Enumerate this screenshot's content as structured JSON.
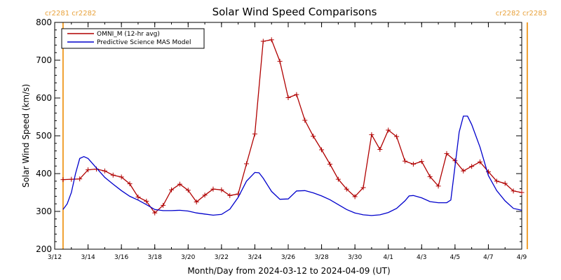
{
  "chart_data": {
    "type": "line",
    "title": "Solar Wind Speed Comparisons",
    "xlabel": "Month/Day from 2024-03-12 to 2024-04-09 (UT)",
    "ylabel": "Solar Wind Speed (km/s)",
    "xlim": [
      "2024-03-12",
      "2024-04-09"
    ],
    "ylim": [
      200,
      800
    ],
    "x_ticks": [
      {
        "date": "2024-03-12",
        "label": "3/12"
      },
      {
        "date": "2024-03-14",
        "label": "3/14"
      },
      {
        "date": "2024-03-16",
        "label": "3/16"
      },
      {
        "date": "2024-03-18",
        "label": "3/18"
      },
      {
        "date": "2024-03-20",
        "label": "3/20"
      },
      {
        "date": "2024-03-22",
        "label": "3/22"
      },
      {
        "date": "2024-03-24",
        "label": "3/24"
      },
      {
        "date": "2024-03-26",
        "label": "3/26"
      },
      {
        "date": "2024-03-28",
        "label": "3/28"
      },
      {
        "date": "2024-03-30",
        "label": "3/30"
      },
      {
        "date": "2024-04-01",
        "label": "4/1"
      },
      {
        "date": "2024-04-03",
        "label": "4/3"
      },
      {
        "date": "2024-04-05",
        "label": "4/5"
      },
      {
        "date": "2024-04-07",
        "label": "4/7"
      },
      {
        "date": "2024-04-09",
        "label": "4/9"
      }
    ],
    "y_ticks": [
      200,
      300,
      400,
      500,
      600,
      700,
      800
    ],
    "grid": false,
    "legend_position": "top-left",
    "carrington_markers": [
      {
        "date": "2024-03-12 12:00",
        "label": "cr2281 cr2282",
        "label_anchor": "left"
      },
      {
        "date": "2024-04-09 08:00",
        "label": "cr2282 cr2283",
        "label_anchor": "right"
      }
    ],
    "series": [
      {
        "name": "OMNI_M (12-hr avg)",
        "color": "#b00000",
        "marker": "plus",
        "points": [
          [
            "2024-03-12 12:00",
            384
          ],
          [
            "2024-03-13 00:00",
            385
          ],
          [
            "2024-03-13 12:00",
            386
          ],
          [
            "2024-03-14 00:00",
            410
          ],
          [
            "2024-03-14 12:00",
            412
          ],
          [
            "2024-03-15 00:00",
            407
          ],
          [
            "2024-03-15 12:00",
            396
          ],
          [
            "2024-03-16 00:00",
            391
          ],
          [
            "2024-03-16 12:00",
            373
          ],
          [
            "2024-03-17 00:00",
            338
          ],
          [
            "2024-03-17 12:00",
            327
          ],
          [
            "2024-03-18 00:00",
            296
          ],
          [
            "2024-03-18 12:00",
            316
          ],
          [
            "2024-03-19 00:00",
            357
          ],
          [
            "2024-03-19 12:00",
            372
          ],
          [
            "2024-03-20 00:00",
            356
          ],
          [
            "2024-03-20 12:00",
            325
          ],
          [
            "2024-03-21 00:00",
            343
          ],
          [
            "2024-03-21 12:00",
            359
          ],
          [
            "2024-03-22 00:00",
            357
          ],
          [
            "2024-03-22 12:00",
            342
          ],
          [
            "2024-03-23 00:00",
            346
          ],
          [
            "2024-03-23 12:00",
            426
          ],
          [
            "2024-03-24 00:00",
            505
          ],
          [
            "2024-03-24 12:00",
            750
          ],
          [
            "2024-03-25 00:00",
            754
          ],
          [
            "2024-03-25 12:00",
            697
          ],
          [
            "2024-03-26 00:00",
            601
          ],
          [
            "2024-03-26 12:00",
            609
          ],
          [
            "2024-03-27 00:00",
            541
          ],
          [
            "2024-03-27 12:00",
            499
          ],
          [
            "2024-03-28 00:00",
            463
          ],
          [
            "2024-03-28 12:00",
            425
          ],
          [
            "2024-03-29 00:00",
            385
          ],
          [
            "2024-03-29 12:00",
            359
          ],
          [
            "2024-03-30 00:00",
            339
          ],
          [
            "2024-03-30 12:00",
            363
          ],
          [
            "2024-03-31 00:00",
            503
          ],
          [
            "2024-03-31 12:00",
            464
          ],
          [
            "2024-04-01 00:00",
            515
          ],
          [
            "2024-04-01 12:00",
            498
          ],
          [
            "2024-04-02 00:00",
            433
          ],
          [
            "2024-04-02 12:00",
            425
          ],
          [
            "2024-04-03 00:00",
            432
          ],
          [
            "2024-04-03 12:00",
            392
          ],
          [
            "2024-04-04 00:00",
            367
          ],
          [
            "2024-04-04 12:00",
            453
          ],
          [
            "2024-04-05 00:00",
            434
          ],
          [
            "2024-04-05 12:00",
            407
          ],
          [
            "2024-04-06 00:00",
            419
          ],
          [
            "2024-04-06 12:00",
            431
          ],
          [
            "2024-04-07 00:00",
            405
          ],
          [
            "2024-04-07 12:00",
            380
          ],
          [
            "2024-04-08 00:00",
            374
          ],
          [
            "2024-04-08 12:00",
            354
          ],
          [
            "2024-04-09 00:00",
            350
          ]
        ]
      },
      {
        "name": "Predictive Science MAS Model",
        "color": "#0000cc",
        "marker": "none",
        "points": [
          [
            "2024-03-12 12:00",
            305
          ],
          [
            "2024-03-12 18:00",
            320
          ],
          [
            "2024-03-13 00:00",
            350
          ],
          [
            "2024-03-13 06:00",
            400
          ],
          [
            "2024-03-13 12:00",
            440
          ],
          [
            "2024-03-13 18:00",
            445
          ],
          [
            "2024-03-14 00:00",
            440
          ],
          [
            "2024-03-14 12:00",
            415
          ],
          [
            "2024-03-15 00:00",
            390
          ],
          [
            "2024-03-15 12:00",
            372
          ],
          [
            "2024-03-16 00:00",
            355
          ],
          [
            "2024-03-16 12:00",
            340
          ],
          [
            "2024-03-17 00:00",
            330
          ],
          [
            "2024-03-17 12:00",
            318
          ],
          [
            "2024-03-18 00:00",
            305
          ],
          [
            "2024-03-18 12:00",
            302
          ],
          [
            "2024-03-19 00:00",
            302
          ],
          [
            "2024-03-19 12:00",
            303
          ],
          [
            "2024-03-20 00:00",
            301
          ],
          [
            "2024-03-20 12:00",
            296
          ],
          [
            "2024-03-21 00:00",
            293
          ],
          [
            "2024-03-21 12:00",
            290
          ],
          [
            "2024-03-22 00:00",
            292
          ],
          [
            "2024-03-22 12:00",
            306
          ],
          [
            "2024-03-23 00:00",
            337
          ],
          [
            "2024-03-23 12:00",
            380
          ],
          [
            "2024-03-24 00:00",
            403
          ],
          [
            "2024-03-24 06:00",
            402
          ],
          [
            "2024-03-24 12:00",
            388
          ],
          [
            "2024-03-25 00:00",
            353
          ],
          [
            "2024-03-25 12:00",
            332
          ],
          [
            "2024-03-26 00:00",
            333
          ],
          [
            "2024-03-26 12:00",
            354
          ],
          [
            "2024-03-27 00:00",
            355
          ],
          [
            "2024-03-27 12:00",
            349
          ],
          [
            "2024-03-28 00:00",
            341
          ],
          [
            "2024-03-28 12:00",
            331
          ],
          [
            "2024-03-29 00:00",
            318
          ],
          [
            "2024-03-29 12:00",
            305
          ],
          [
            "2024-03-30 00:00",
            296
          ],
          [
            "2024-03-30 12:00",
            291
          ],
          [
            "2024-03-31 00:00",
            289
          ],
          [
            "2024-03-31 12:00",
            291
          ],
          [
            "2024-04-01 00:00",
            297
          ],
          [
            "2024-04-01 12:00",
            308
          ],
          [
            "2024-04-02 00:00",
            328
          ],
          [
            "2024-04-02 06:00",
            341
          ],
          [
            "2024-04-02 12:00",
            342
          ],
          [
            "2024-04-03 00:00",
            336
          ],
          [
            "2024-04-03 12:00",
            326
          ],
          [
            "2024-04-04 00:00",
            323
          ],
          [
            "2024-04-04 12:00",
            323
          ],
          [
            "2024-04-04 18:00",
            330
          ],
          [
            "2024-04-05 00:00",
            420
          ],
          [
            "2024-04-05 06:00",
            510
          ],
          [
            "2024-04-05 12:00",
            552
          ],
          [
            "2024-04-05 18:00",
            552
          ],
          [
            "2024-04-06 00:00",
            530
          ],
          [
            "2024-04-06 12:00",
            470
          ],
          [
            "2024-04-07 00:00",
            395
          ],
          [
            "2024-04-07 12:00",
            355
          ],
          [
            "2024-04-08 00:00",
            328
          ],
          [
            "2024-04-08 12:00",
            308
          ],
          [
            "2024-04-09 00:00",
            303
          ]
        ]
      }
    ]
  }
}
